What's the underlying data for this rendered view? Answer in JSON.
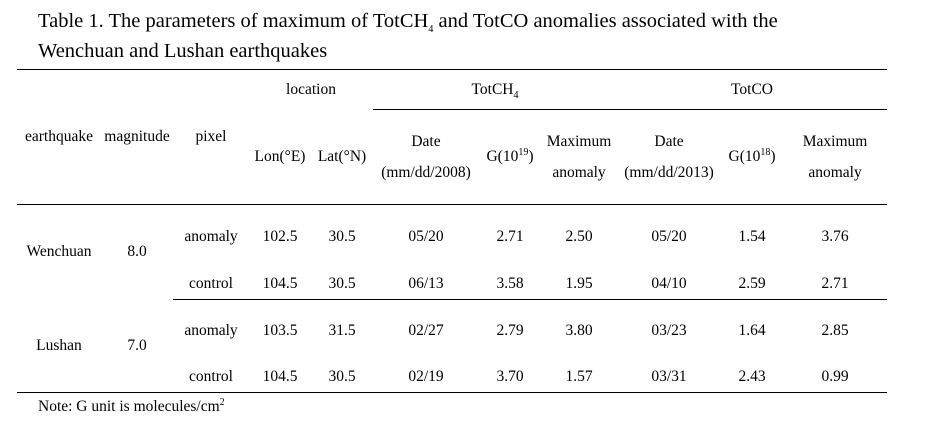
{
  "caption": {
    "line1": "Table 1. The parameters of maximum of TotCH",
    "line1_sub": "4",
    "line1_rest": " and TotCO anomalies associated with the",
    "line2": "Wenchuan and Lushan earthquakes"
  },
  "header": {
    "earthquake": "earthquake",
    "magnitude": "magnitude",
    "pixel": "pixel",
    "location": "location",
    "lon": "Lon(°E)",
    "lat": "Lat(°N)",
    "totch4_prefix": "TotCH",
    "totch4_sub": "4",
    "totco": "TotCO",
    "date_ch4": "Date (mm/dd/2008)",
    "g_ch4_prefix": "G(10",
    "g_ch4_sup": "19",
    "g_ch4_suffix": ")",
    "max_ch4": "Maximum anomaly",
    "date_co": "Date (mm/dd/2013)",
    "g_co_prefix": "G(10",
    "g_co_sup": "18",
    "g_co_suffix": ")",
    "max_co": "Maximum anomaly"
  },
  "rows": [
    {
      "earthquake": "Wenchuan",
      "magnitude": "8.0",
      "pixel": "anomaly",
      "lon": "102.5",
      "lat": "30.5",
      "ch4_date": "05/20",
      "ch4_g": "2.71",
      "ch4_max": "2.50",
      "co_date": "05/20",
      "co_g": "1.54",
      "co_max": "3.76"
    },
    {
      "pixel": "control",
      "lon": "104.5",
      "lat": "30.5",
      "ch4_date": "06/13",
      "ch4_g": "3.58",
      "ch4_max": "1.95",
      "co_date": "04/10",
      "co_g": "2.59",
      "co_max": "2.71"
    },
    {
      "earthquake": "Lushan",
      "magnitude": "7.0",
      "pixel": "anomaly",
      "lon": "103.5",
      "lat": "31.5",
      "ch4_date": "02/27",
      "ch4_g": "2.79",
      "ch4_max": "3.80",
      "co_date": "03/23",
      "co_g": "1.64",
      "co_max": "2.85"
    },
    {
      "pixel": "control",
      "lon": "104.5",
      "lat": "30.5",
      "ch4_date": "02/19",
      "ch4_g": "3.70",
      "ch4_max": "1.57",
      "co_date": "03/31",
      "co_g": "2.43",
      "co_max": "0.99"
    }
  ],
  "note": {
    "text": "Note: G unit is molecules/cm",
    "sup": "2"
  }
}
